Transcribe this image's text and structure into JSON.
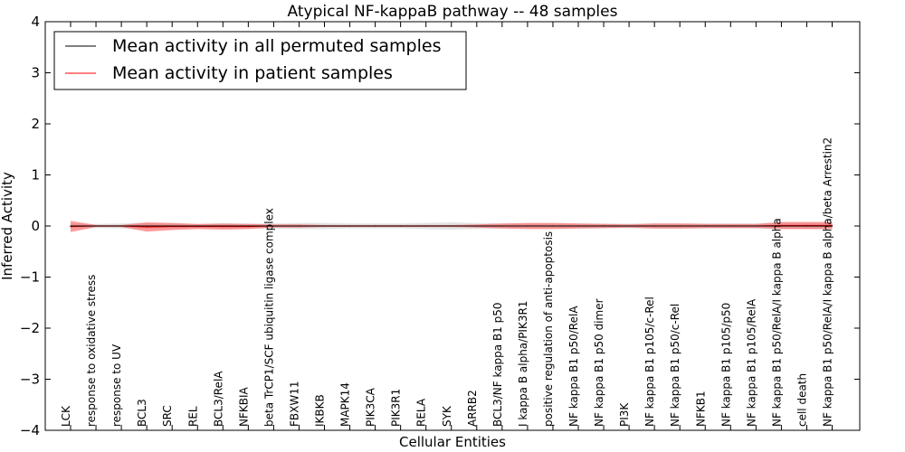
{
  "chart_data": {
    "type": "line",
    "title": "Atypical NF-kappaB pathway -- 48 samples",
    "xlabel": "Cellular Entities",
    "ylabel": "Inferred Activity",
    "ylim": [
      -4,
      4
    ],
    "yticks": [
      -4,
      -3,
      -2,
      -1,
      0,
      1,
      2,
      3,
      4
    ],
    "ytick_labels": [
      "−4",
      "−3",
      "−2",
      "−1",
      "0",
      "1",
      "2",
      "3",
      "4"
    ],
    "grid": false,
    "legend_position": "top-left",
    "categories": [
      "LCK",
      "response to oxidative stress",
      "response to UV",
      "BCL3",
      "SRC",
      "REL",
      "BCL3/RelA",
      "NFKBIA",
      "beta TrCP1/SCF ubiquitin ligase complex",
      "FBXW11",
      "IKBKB",
      "MAPK14",
      "PIK3CA",
      "PIK3R1",
      "RELA",
      "SYK",
      "ARRB2",
      "BCL3/NF kappa B1 p50",
      "I kappa B alpha/PIK3R1",
      "positive regulation of anti-apoptosis",
      "NF kappa B1 p50/RelA",
      "NF kappa B1 p50 dimer",
      "PI3K",
      "NF kappa B1 p105/c-Rel",
      "NF kappa B1 p50/c-Rel",
      "NFKB1",
      "NF kappa B1 p105/p50",
      "NF kappa B1 p105/RelA",
      "NF kappa B1 p50/RelA/I kappa B alpha",
      "cell death",
      "NF kappa B1 p50/RelA/I kappa B alpha/beta Arrestin2"
    ],
    "series": [
      {
        "name": "Mean activity in all permuted samples",
        "color": "#000000",
        "band_color": "#b0b0b0",
        "values": [
          0,
          0,
          0,
          0,
          0,
          0,
          0,
          0,
          0,
          0,
          0,
          0,
          0,
          0,
          0,
          0,
          0,
          0,
          0,
          0,
          0,
          0,
          0,
          0,
          0,
          0,
          0,
          0,
          0,
          0,
          0
        ],
        "band": [
          0.05,
          0.04,
          0.05,
          0.06,
          0.05,
          0.04,
          0.05,
          0.05,
          0.05,
          0.06,
          0.06,
          0.05,
          0.05,
          0.05,
          0.06,
          0.07,
          0.06,
          0.05,
          0.05,
          0.05,
          0.05,
          0.05,
          0.05,
          0.05,
          0.05,
          0.05,
          0.05,
          0.05,
          0.06,
          0.06,
          0.06
        ]
      },
      {
        "name": "Mean activity in patient samples",
        "color": "#ff0000",
        "band_color": "#ff4d4d",
        "values": [
          -0.01,
          0.0,
          0.0,
          -0.02,
          -0.01,
          -0.01,
          -0.01,
          -0.01,
          0.0,
          0.0,
          0.0,
          0.0,
          0.0,
          0.0,
          0.0,
          0.0,
          0.0,
          0.0,
          0.0,
          0.0,
          0.0,
          0.0,
          0.0,
          0.0,
          0.0,
          0.0,
          0.0,
          0.0,
          0.01,
          0.01,
          0.01
        ],
        "band": [
          0.11,
          0.02,
          0.02,
          0.09,
          0.07,
          0.05,
          0.06,
          0.05,
          0.03,
          0.03,
          0.02,
          0.02,
          0.02,
          0.02,
          0.02,
          0.02,
          0.03,
          0.05,
          0.06,
          0.06,
          0.05,
          0.04,
          0.03,
          0.05,
          0.05,
          0.04,
          0.04,
          0.04,
          0.07,
          0.07,
          0.07
        ]
      }
    ]
  }
}
